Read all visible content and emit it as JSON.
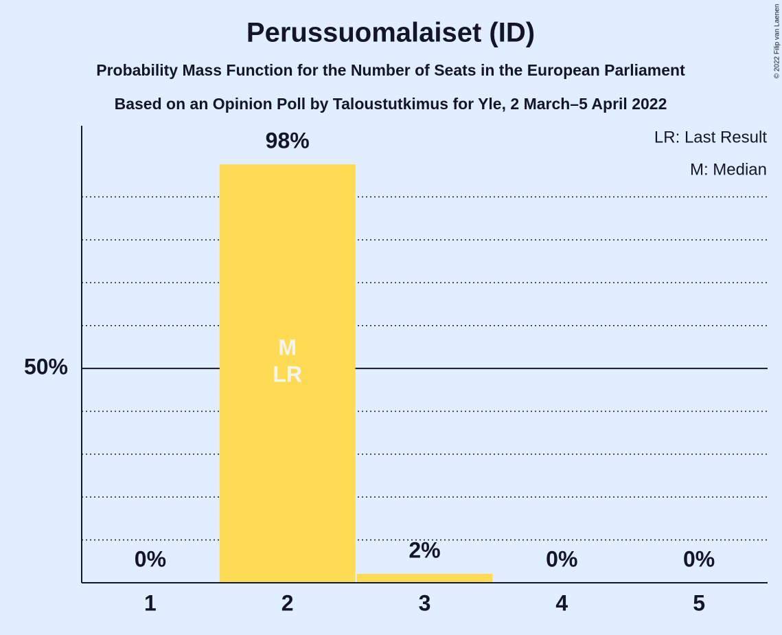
{
  "chart_data": {
    "type": "bar",
    "title": "Perussuomalaiset (ID)",
    "subtitle": [
      "Probability Mass Function for the Number of Seats in the European Parliament",
      "Based on an Opinion Poll by Taloustutkimus for Yle, 2 March–5 April 2022"
    ],
    "categories": [
      "1",
      "2",
      "3",
      "4",
      "5"
    ],
    "values": [
      0,
      97.6,
      2.1,
      0,
      0
    ],
    "value_labels": [
      "0%",
      "98%",
      "2%",
      "0%",
      "0%"
    ],
    "color": "#fedb54",
    "ylim": [
      0,
      106.6
    ],
    "yticks": [
      {
        "value": 50,
        "label": "50%"
      }
    ],
    "yticks_minor": [
      10,
      20,
      30,
      40,
      60,
      70,
      80,
      90
    ],
    "median": 2,
    "median_label": "M",
    "last_result": 2,
    "last_result_label": "LR",
    "legend": [
      "LR: Last Result",
      "M: Median"
    ],
    "legend_position": "upper right",
    "copyright": "© 2022 Filip van Laenen"
  }
}
